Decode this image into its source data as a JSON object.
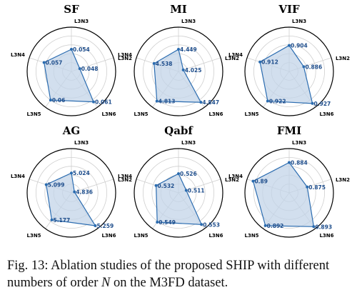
{
  "figure": {
    "axes": [
      "L3N3",
      "L3N2",
      "L3N6",
      "L3N5",
      "L3N4"
    ],
    "colors": {
      "line": "#2b6cb0",
      "fill": "#c3d4e8",
      "ring": "#cfcfcf",
      "outer": "#000000"
    }
  },
  "chart_data": [
    {
      "type": "radar",
      "title": "SF",
      "axes": [
        "L3N3",
        "L3N2",
        "L3N6",
        "L3N5",
        "L3N4"
      ],
      "values": [
        0.054,
        0.048,
        0.061,
        0.06,
        0.057
      ],
      "labels": [
        "0.054",
        "0.048",
        "0.061",
        "0.06",
        "0.057"
      ],
      "rmin": 0.044,
      "rmax": 0.064
    },
    {
      "type": "radar",
      "title": "MI",
      "axes": [
        "L3N3",
        "L3N2",
        "L3N6",
        "L3N5",
        "L3N4"
      ],
      "values": [
        4.449,
        4.025,
        4.847,
        4.813,
        4.538
      ],
      "labels": [
        "4.449",
        "4.025",
        "4.847",
        "4.813",
        "4.538"
      ],
      "rmin": 3.9,
      "rmax": 5.0
    },
    {
      "type": "radar",
      "title": "VIF",
      "axes": [
        "L3N3",
        "L3N2",
        "L3N6",
        "L3N5",
        "L3N4"
      ],
      "values": [
        0.904,
        0.886,
        0.927,
        0.922,
        0.912
      ],
      "labels": [
        "0.904",
        "0.886",
        "0.927",
        "0.922",
        "0.912"
      ],
      "rmin": 0.86,
      "rmax": 0.935
    },
    {
      "type": "radar",
      "title": "AG",
      "axes": [
        "L3N3",
        "L3N2",
        "L3N6",
        "L3N5",
        "L3N4"
      ],
      "values": [
        5.024,
        4.836,
        5.259,
        5.177,
        5.099
      ],
      "labels": [
        "5.024",
        "4.836",
        "5.259",
        "5.177",
        "5.099"
      ],
      "rmin": 4.8,
      "rmax": 5.3
    },
    {
      "type": "radar",
      "title": "Qabf",
      "axes": [
        "L3N3",
        "L3N2",
        "L3N6",
        "L3N5",
        "L3N4"
      ],
      "values": [
        0.526,
        0.511,
        0.553,
        0.549,
        0.532
      ],
      "labels": [
        "0.526",
        "0.511",
        "0.553",
        "0.549",
        "0.532"
      ],
      "rmin": 0.5,
      "rmax": 0.56
    },
    {
      "type": "radar",
      "title": "FMI",
      "axes": [
        "L3N3",
        "L3N2",
        "L3N6",
        "L3N5",
        "L3N4"
      ],
      "values": [
        0.884,
        0.875,
        0.893,
        0.892,
        0.89
      ],
      "labels": [
        "0.884",
        "0.875",
        "0.893",
        "0.892",
        "0.89"
      ],
      "rmin": 0.86,
      "rmax": 0.895
    }
  ],
  "caption": {
    "prefix": "Fig. 13: Ablation studies of the proposed SHIP with different numbers of order ",
    "symbol": "N",
    "suffix": " on the M3FD dataset."
  }
}
